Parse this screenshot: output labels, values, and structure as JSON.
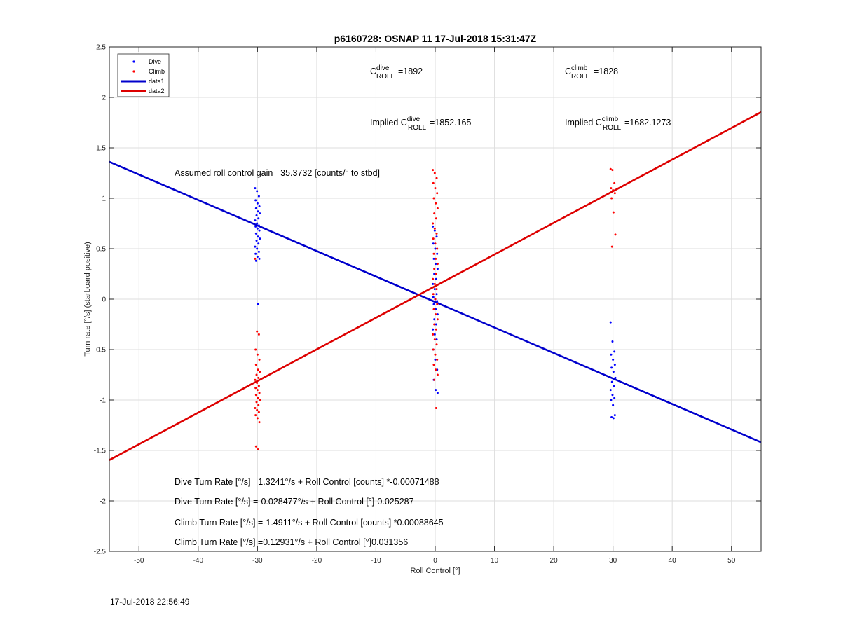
{
  "chart_data": {
    "type": "scatter",
    "title": "p6160728: OSNAP 11 17-Jul-2018 15:31:47Z",
    "xlabel": "Roll Control [°]",
    "ylabel": "Turn rate [°/s] (starboard positive)",
    "xlim": [
      -55,
      55
    ],
    "ylim": [
      -2.5,
      2.5
    ],
    "xticks": [
      -50,
      -40,
      -30,
      -20,
      -10,
      0,
      10,
      20,
      30,
      40,
      50
    ],
    "xtick_labels": [
      "-50",
      "-40",
      "-30",
      "-20",
      "-10",
      "0",
      "10",
      "20",
      "30",
      "40",
      "50"
    ],
    "yticks": [
      -2.5,
      -2,
      -1.5,
      -1,
      -0.5,
      0,
      0.5,
      1,
      1.5,
      2,
      2.5
    ],
    "ytick_labels": [
      "-2.5",
      "-2",
      "-1.5",
      "-1",
      "-0.5",
      "0",
      "0.5",
      "1",
      "1.5",
      "2",
      "2.5"
    ],
    "grid": true,
    "legend_position": "top-left",
    "legend": [
      "Dive",
      "Climb",
      "data1",
      "data2"
    ],
    "series": [
      {
        "name": "Dive",
        "kind": "scatter",
        "color": "#0000ff",
        "clusters": [
          {
            "x": -30,
            "y": [
              1.1,
              1.07,
              1.02,
              0.98,
              0.95,
              0.92,
              0.9,
              0.87,
              0.85,
              0.83,
              0.8,
              0.78,
              0.75,
              0.73,
              0.72,
              0.7,
              0.68,
              0.65,
              0.62,
              0.6,
              0.58,
              0.55,
              0.52,
              0.5,
              0.47,
              0.45,
              0.42,
              0.4,
              0.38,
              -0.05
            ]
          },
          {
            "x": 0,
            "y": [
              0.72,
              0.68,
              0.62,
              0.55,
              0.5,
              0.45,
              0.4,
              0.35,
              0.3,
              0.25,
              0.2,
              0.15,
              0.1,
              0.05,
              0.02,
              0.0,
              -0.02,
              -0.05,
              -0.1,
              -0.15,
              -0.2,
              -0.25,
              -0.3,
              -0.35,
              -0.4,
              -0.5,
              -0.6,
              -0.7,
              -0.8,
              -0.9,
              -0.93
            ]
          },
          {
            "x": 30,
            "y": [
              -0.23,
              -0.42,
              -0.52,
              -0.55,
              -0.6,
              -0.65,
              -0.68,
              -0.72,
              -0.78,
              -0.82,
              -0.86,
              -0.9,
              -0.95,
              -0.98,
              -1.0,
              -1.05,
              -1.15,
              -1.17,
              -1.18
            ]
          }
        ]
      },
      {
        "name": "Climb",
        "kind": "scatter",
        "color": "#ff0000",
        "clusters": [
          {
            "x": -30,
            "y": [
              0.4,
              -0.32,
              -0.35,
              -0.5,
              -0.55,
              -0.6,
              -0.65,
              -0.7,
              -0.72,
              -0.75,
              -0.78,
              -0.8,
              -0.83,
              -0.86,
              -0.88,
              -0.9,
              -0.93,
              -0.95,
              -0.98,
              -1.0,
              -1.02,
              -1.05,
              -1.08,
              -1.1,
              -1.12,
              -1.15,
              -1.18,
              -1.22,
              -1.46,
              -1.49
            ]
          },
          {
            "x": 0,
            "y": [
              1.28,
              1.25,
              1.2,
              1.15,
              1.1,
              1.05,
              1.0,
              0.95,
              0.9,
              0.85,
              0.8,
              0.75,
              0.7,
              0.65,
              0.6,
              0.55,
              0.5,
              0.45,
              0.4,
              0.35,
              0.3,
              0.25,
              0.2,
              0.15,
              0.1,
              0.05,
              0.0,
              -0.05,
              -0.1,
              -0.15,
              -0.2,
              -0.25,
              -0.3,
              -0.35,
              -0.4,
              -0.45,
              -0.5,
              -0.55,
              -0.6,
              -0.65,
              -0.7,
              -0.75,
              -0.8,
              -1.08
            ]
          },
          {
            "x": 30,
            "y": [
              1.29,
              1.28,
              1.15,
              1.1,
              1.08,
              1.05,
              1.0,
              0.86,
              0.64,
              0.52
            ]
          }
        ]
      },
      {
        "name": "data1",
        "kind": "line",
        "color": "#0000cc",
        "x": [
          -55,
          55
        ],
        "y": [
          1.3615,
          -1.4185
        ]
      },
      {
        "name": "data2",
        "kind": "line",
        "color": "#dd0000",
        "x": [
          -55,
          55
        ],
        "y": [
          -1.5952,
          1.8538
        ]
      }
    ],
    "annotations": {
      "c_dive": {
        "base": "C",
        "sup": "dive",
        "sub": "ROLL",
        "value": "=1892"
      },
      "c_climb": {
        "base": "C",
        "sup": "climb",
        "sub": "ROLL",
        "value": "=1828"
      },
      "implied_dive": {
        "prefix": "Implied C",
        "sup": "dive",
        "sub": "ROLL",
        "value": "=1852.165"
      },
      "implied_climb": {
        "prefix": "Implied C",
        "sup": "climb",
        "sub": "ROLL",
        "value": "=1682.1273"
      },
      "gain": "Assumed roll control gain =35.3732 [counts/° to stbd]",
      "equations": [
        "Dive Turn Rate [°/s] =1.3241°/s + Roll Control [counts] *-0.00071488",
        "Dive Turn Rate [°/s] =-0.028477°/s + Roll Control [°]-0.025287",
        "Climb Turn Rate [°/s] =-1.4911°/s + Roll Control [counts] *0.00088645",
        "Climb Turn Rate [°/s] =0.12931°/s + Roll Control [°]0.031356"
      ]
    }
  },
  "footer": {
    "timestamp": "17-Jul-2018 22:56:49"
  }
}
